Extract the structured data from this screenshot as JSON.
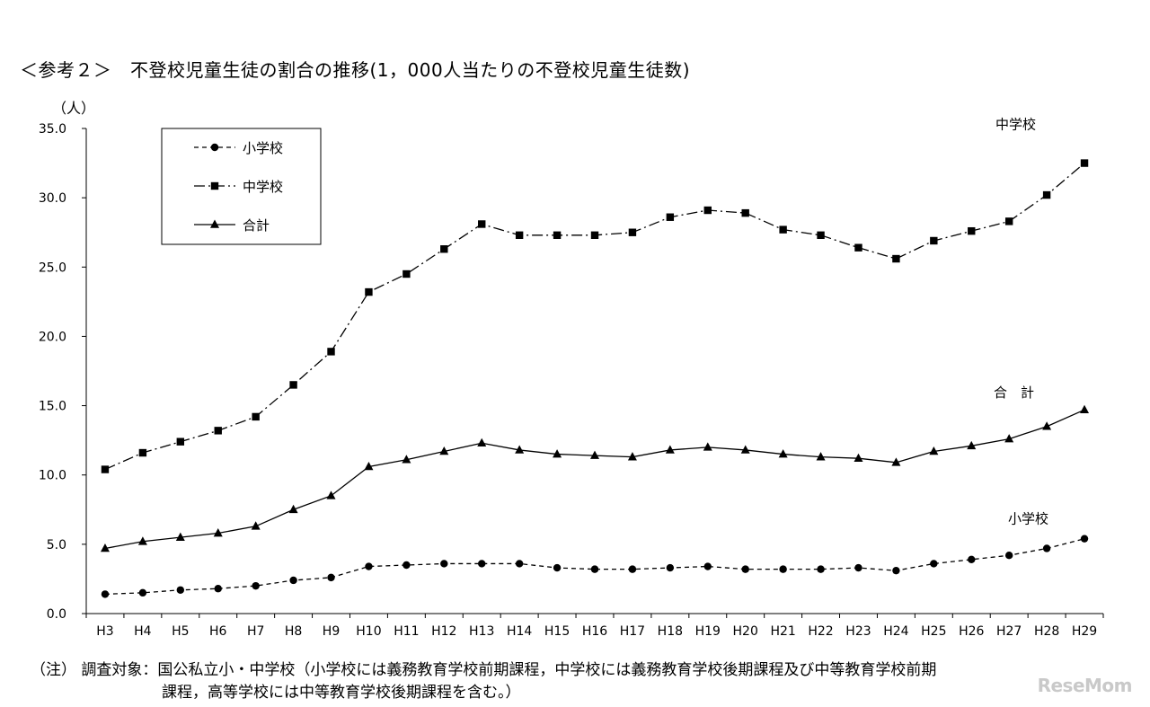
{
  "title": "＜参考２＞　不登校児童生徒の割合の推移(1，000人当たりの不登校児童生徒数)",
  "unit_label": "（人）",
  "note": {
    "line1": "（注） 調査対象：国公私立小・中学校（小学校には義務教育学校前期課程，中学校には義務教育学校後期課程及び中等教育学校前期",
    "line2": "課程，高等学校には中等教育学校後期課程を含む。）"
  },
  "watermark": "ReseMom",
  "chart_data": {
    "type": "line",
    "categories": [
      "H3",
      "H4",
      "H5",
      "H6",
      "H7",
      "H8",
      "H9",
      "H10",
      "H11",
      "H12",
      "H13",
      "H14",
      "H15",
      "H16",
      "H17",
      "H18",
      "H19",
      "H20",
      "H21",
      "H22",
      "H23",
      "H24",
      "H25",
      "H26",
      "H27",
      "H28",
      "H29"
    ],
    "ylim": [
      0,
      35
    ],
    "yticks": [
      "0.0",
      "5.0",
      "10.0",
      "15.0",
      "20.0",
      "25.0",
      "30.0",
      "35.0"
    ],
    "grid": false,
    "legend_position": "top-left",
    "series": [
      {
        "name": "小学校",
        "end_label": "小学校",
        "marker": "circle",
        "line_style": "dashed",
        "values": [
          1.4,
          1.5,
          1.7,
          1.8,
          2.0,
          2.4,
          2.6,
          3.4,
          3.5,
          3.6,
          3.6,
          3.6,
          3.3,
          3.2,
          3.2,
          3.3,
          3.4,
          3.2,
          3.2,
          3.2,
          3.3,
          3.1,
          3.6,
          3.9,
          4.2,
          4.7,
          5.4
        ]
      },
      {
        "name": "中学校",
        "end_label": "中学校",
        "marker": "square",
        "line_style": "dashdot",
        "values": [
          10.4,
          11.6,
          12.4,
          13.2,
          14.2,
          16.5,
          18.9,
          23.2,
          24.5,
          26.3,
          28.1,
          27.3,
          27.3,
          27.3,
          27.5,
          28.6,
          29.1,
          28.9,
          27.7,
          27.3,
          26.4,
          25.6,
          26.9,
          27.6,
          28.3,
          30.2,
          32.5
        ]
      },
      {
        "name": "合計",
        "end_label": "合　計",
        "marker": "triangle",
        "line_style": "solid",
        "values": [
          4.7,
          5.2,
          5.5,
          5.8,
          6.3,
          7.5,
          8.5,
          10.6,
          11.1,
          11.7,
          12.3,
          11.8,
          11.5,
          11.4,
          11.3,
          11.8,
          12.0,
          11.8,
          11.5,
          11.3,
          11.2,
          10.9,
          11.7,
          12.1,
          12.6,
          13.5,
          14.7
        ]
      }
    ]
  }
}
